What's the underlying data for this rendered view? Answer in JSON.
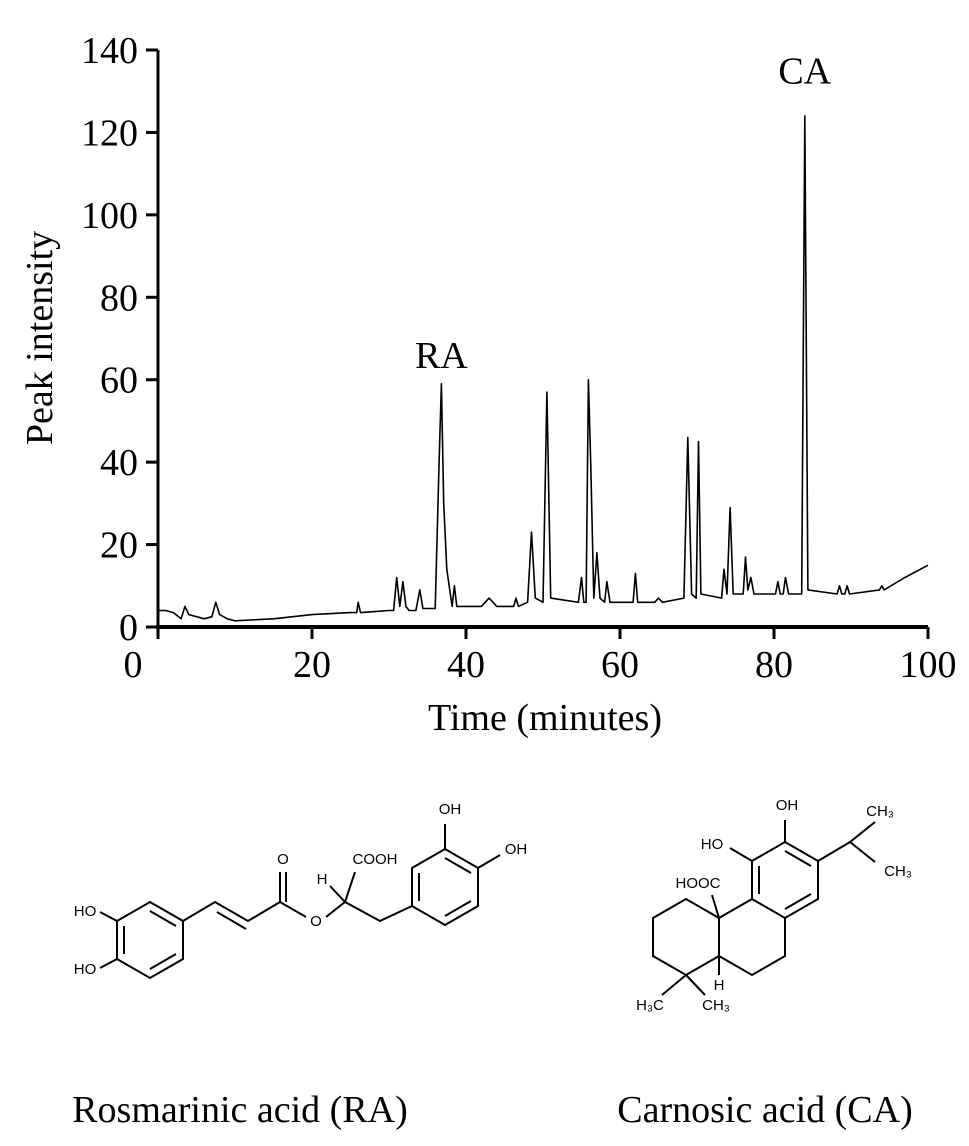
{
  "chart_data": {
    "type": "line",
    "xlabel": "Time (minutes)",
    "ylabel": "Peak intensity",
    "x": [
      0,
      1,
      2,
      3,
      3.5,
      4,
      5,
      6,
      7,
      7.5,
      8,
      9,
      10,
      15,
      20,
      25,
      25.8,
      26,
      26.3,
      30,
      30.6,
      31,
      31.4,
      31.8,
      32.2,
      32.6,
      33.5,
      34,
      34.4,
      36,
      36.5,
      36.8,
      37.1,
      37.5,
      38.2,
      38.5,
      38.8,
      42,
      43,
      44,
      46.2,
      46.5,
      46.8,
      48,
      48.5,
      49,
      50,
      50.5,
      51,
      54.6,
      55,
      55.3,
      55.6,
      55.9,
      56.2,
      56.6,
      57,
      57.4,
      58,
      58.3,
      58.7,
      61.7,
      62,
      62.3,
      64.5,
      65,
      65.5,
      68.3,
      68.8,
      69.3,
      69.9,
      70.2,
      70.5,
      73.2,
      73.5,
      73.9,
      74.3,
      74.7,
      76,
      76.3,
      76.6,
      77,
      77.4,
      80.2,
      80.5,
      80.8,
      81.2,
      81.5,
      81.9,
      83.6,
      84,
      84.4,
      88.2,
      88.5,
      88.8,
      89.2,
      89.5,
      89.8,
      93.7,
      94,
      94.3,
      97,
      100
    ],
    "values": [
      4,
      4,
      3.5,
      2,
      5,
      3,
      2.5,
      2,
      2.5,
      6,
      3,
      2,
      1.5,
      2,
      3,
      3.5,
      3.5,
      6,
      3.5,
      4,
      4,
      12,
      5,
      11,
      5,
      4,
      4,
      9,
      4.5,
      4.5,
      40,
      59,
      30,
      14,
      5,
      10,
      5,
      5,
      7,
      5,
      5,
      7,
      5,
      6,
      23,
      7,
      6,
      57,
      7,
      6,
      12,
      6,
      6,
      60,
      40,
      7,
      18,
      7,
      6,
      11,
      6,
      6,
      13,
      6,
      6,
      7,
      6,
      7,
      46,
      8,
      7,
      45,
      8,
      7,
      14,
      8,
      29,
      8,
      8,
      17,
      9,
      12,
      8,
      8,
      11,
      8,
      8,
      12,
      8,
      8,
      124,
      9,
      8,
      10,
      8,
      8,
      10,
      8,
      9,
      10,
      9,
      12,
      15
    ],
    "color": "#000000",
    "xlim": [
      0,
      100
    ],
    "xticks": [
      0,
      20,
      40,
      60,
      80,
      100
    ],
    "ylim": [
      0,
      140
    ],
    "yticks": [
      0,
      20,
      40,
      60,
      80,
      100,
      120,
      140
    ],
    "annotations": [
      {
        "text": "RA",
        "x": 36.8,
        "y": 66
      },
      {
        "text": "CA",
        "x": 84,
        "y": 135
      }
    ]
  },
  "structures": [
    {
      "caption": "Rosmarinic acid (RA)",
      "labels": [
        "HO",
        "HO",
        "O",
        "O",
        "H",
        "COOH",
        "OH",
        "OH"
      ]
    },
    {
      "caption": "Carnosic acid (CA)",
      "labels": [
        "OH",
        "HO",
        "CH₃",
        "CH₃",
        "HOOC",
        "H",
        "H₃C",
        "CH₃"
      ]
    }
  ]
}
